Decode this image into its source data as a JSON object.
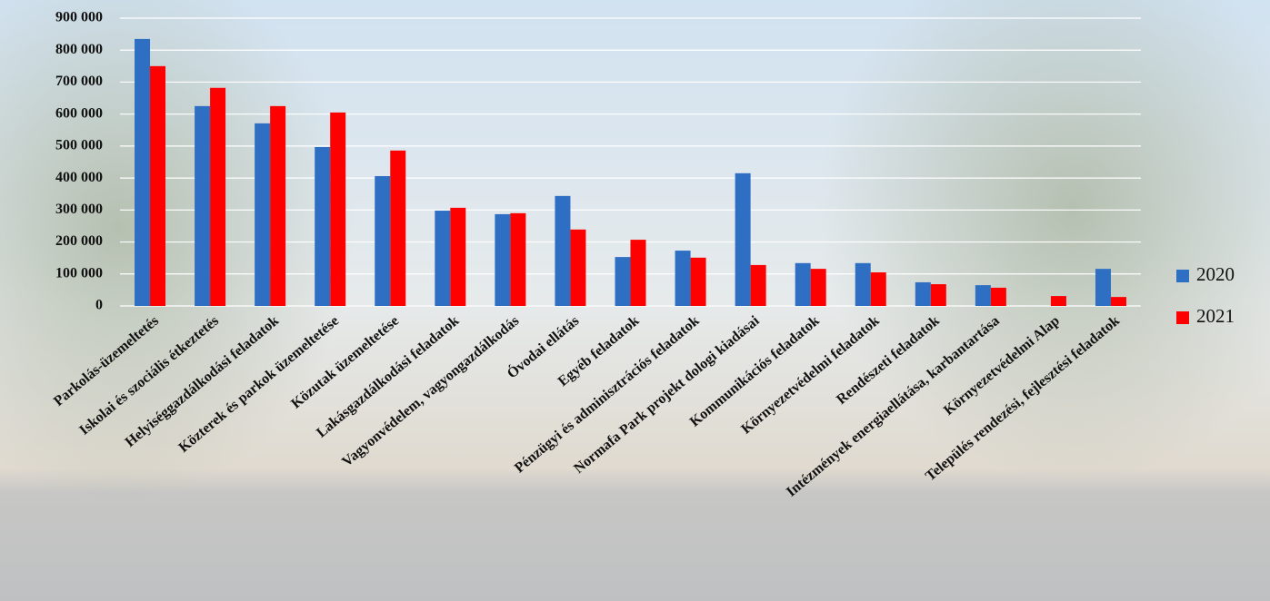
{
  "chart_data": {
    "type": "bar",
    "categories": [
      "Parkolás-üzemeltetés",
      "Iskolai és szociális étkeztetés",
      "Helyiséggazdálkodási feladatok",
      "Közterek és parkok  üzemeltetése",
      "Közutak üzemeltetése",
      "Lakásgazdálkodási feladatok",
      "Vagyonvédelem, vagyongazdálkodás",
      "Óvodai ellátás",
      "Egyéb feladatok",
      "Pénzügyi és adminisztrációs feladatok",
      "Normafa Park projekt dologi kiadásai",
      "Kommunikációs feladatok",
      "Környezetvédelmi feladatok",
      "Rendészeti feladatok",
      "Intézmények energiaellátása, karbantartása",
      "Környezetvédelmi Alap",
      "Település rendezési, fejlesztési feladatok"
    ],
    "series": [
      {
        "name": "2020",
        "color": "#2e6fc4",
        "values": [
          835000,
          625000,
          571000,
          497000,
          406000,
          298000,
          287000,
          344000,
          153000,
          173000,
          415000,
          134000,
          134000,
          74000,
          65000,
          0,
          116000
        ]
      },
      {
        "name": "2021",
        "color": "#ff0000",
        "values": [
          750000,
          682000,
          625000,
          605000,
          486000,
          307000,
          290000,
          239000,
          207000,
          151000,
          128000,
          116000,
          105000,
          68000,
          57000,
          31000,
          28000
        ]
      }
    ],
    "ylim": [
      0,
      900000
    ],
    "yticks": [
      0,
      {
        "value": 100000,
        "label": "100 000"
      },
      {
        "value": 200000,
        "label": "200 000"
      },
      {
        "value": 300000,
        "label": "300 000"
      },
      {
        "value": 400000,
        "label": "400 000"
      },
      {
        "value": 500000,
        "label": "500 000"
      },
      {
        "value": 600000,
        "label": "600 000"
      },
      {
        "value": 700000,
        "label": "700 000"
      },
      {
        "value": 800000,
        "label": "800 000"
      },
      {
        "value": 900000,
        "label": "900 000"
      }
    ],
    "grid": true,
    "legend": "right"
  }
}
